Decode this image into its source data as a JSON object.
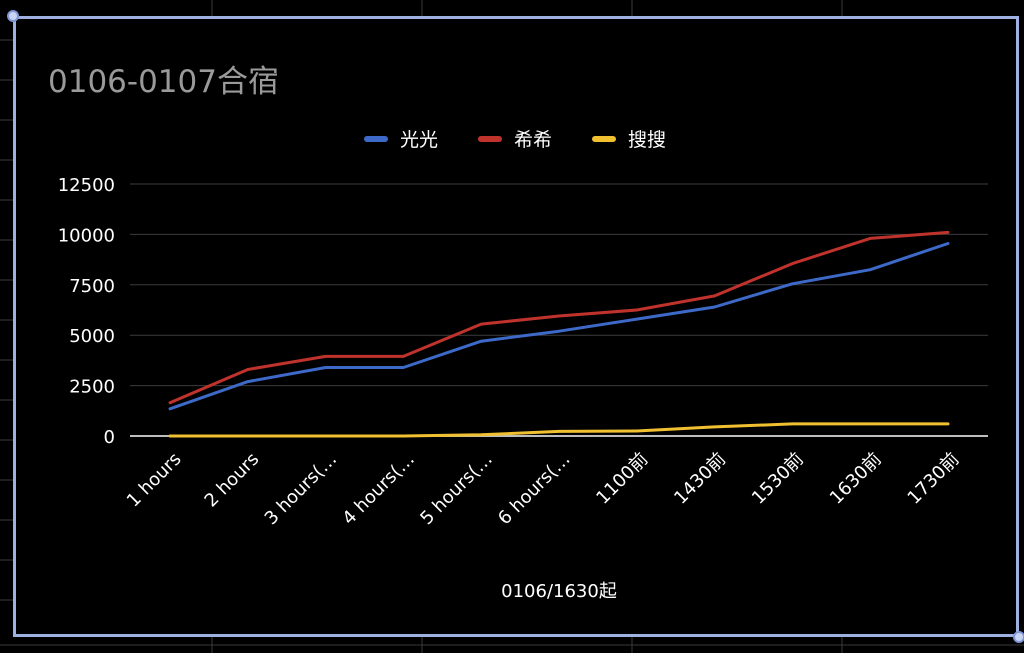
{
  "chart_data": {
    "type": "line",
    "title": "0106-0107合宿",
    "xlabel": "0106/1630起",
    "ylabel": "",
    "categories": [
      "1 hours",
      "2 hours",
      "3 hours(…",
      "4 hours(…",
      "5 hours(…",
      "6 hours(…",
      "1100前",
      "1430前",
      "1530前",
      "1630前",
      "1730前"
    ],
    "ylim": [
      0,
      12500
    ],
    "yticks": [
      0,
      2500,
      5000,
      7500,
      10000,
      12500
    ],
    "grid": true,
    "legend_position": "top-center",
    "series": [
      {
        "name": "光光",
        "color": "#3d6ac9",
        "values": [
          1350,
          2700,
          3400,
          3400,
          4700,
          5200,
          5800,
          6400,
          7550,
          8250,
          9550
        ]
      },
      {
        "name": "希希",
        "color": "#c0332c",
        "values": [
          1650,
          3300,
          3950,
          3950,
          5550,
          5950,
          6250,
          6950,
          8550,
          9800,
          10100
        ]
      },
      {
        "name": "搜搜",
        "color": "#f0c030",
        "values": [
          0,
          0,
          0,
          0,
          60,
          230,
          250,
          450,
          600,
          600,
          600
        ]
      }
    ]
  }
}
